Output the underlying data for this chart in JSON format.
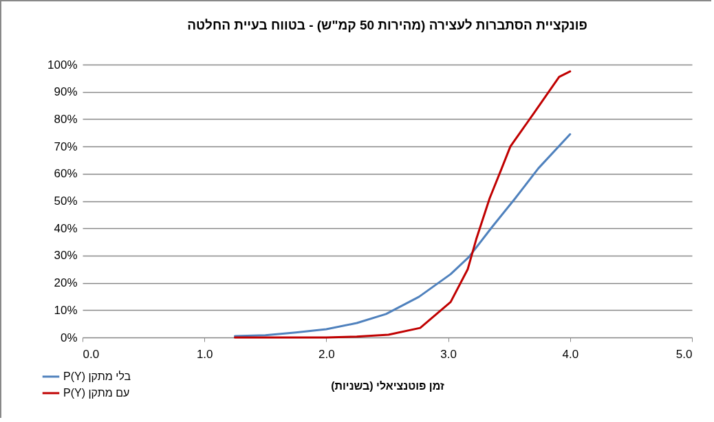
{
  "chart_data": {
    "type": "line",
    "title": "פונקציית הסתברות לעצירה (מהירות 50 קמ\"ש) - בטווח בעיית החלטה",
    "xlabel": "זמן פוטנציאלי (בשניות)",
    "series": [
      {
        "name": "P(Y) בלי מתקן",
        "color": "#4f81bd",
        "x": [
          1.25,
          1.5,
          1.75,
          2.0,
          2.25,
          2.49,
          2.76,
          3.02,
          3.17,
          3.36,
          3.55,
          3.74,
          4.0
        ],
        "values": [
          0.5,
          0.8,
          1.8,
          3,
          5.3,
          8.6,
          14.9,
          23.2,
          29.5,
          40.5,
          51,
          62,
          74.5
        ]
      },
      {
        "name": "P(Y) עם מתקן",
        "color": "#c00000",
        "x": [
          1.25,
          2.0,
          2.25,
          2.51,
          2.77,
          3.02,
          3.16,
          3.23,
          3.34,
          3.43,
          3.51,
          3.7,
          3.91,
          4.0
        ],
        "values": [
          0,
          0,
          0.3,
          1,
          3.5,
          13,
          25,
          36,
          51,
          61,
          70,
          82,
          95.5,
          97.5
        ]
      }
    ],
    "xlim": [
      0,
      5
    ],
    "xticks": [
      {
        "value": 0,
        "label": "0.0"
      },
      {
        "value": 1,
        "label": "1.0"
      },
      {
        "value": 2,
        "label": "2.0"
      },
      {
        "value": 3,
        "label": "3.0"
      },
      {
        "value": 4,
        "label": "4.0"
      },
      {
        "value": 5,
        "label": "5.0"
      }
    ],
    "ylim": [
      0,
      100
    ],
    "yticks": [
      {
        "value": 0,
        "label": "0%"
      },
      {
        "value": 10,
        "label": "10%"
      },
      {
        "value": 20,
        "label": "20%"
      },
      {
        "value": 30,
        "label": "30%"
      },
      {
        "value": 40,
        "label": "40%"
      },
      {
        "value": 50,
        "label": "50%"
      },
      {
        "value": 60,
        "label": "60%"
      },
      {
        "value": 70,
        "label": "70%"
      },
      {
        "value": 80,
        "label": "80%"
      },
      {
        "value": 90,
        "label": "90%"
      },
      {
        "value": 100,
        "label": "100%"
      }
    ],
    "grid": "y",
    "legend": "bottom left",
    "marker": "none",
    "line_style": "solid"
  }
}
